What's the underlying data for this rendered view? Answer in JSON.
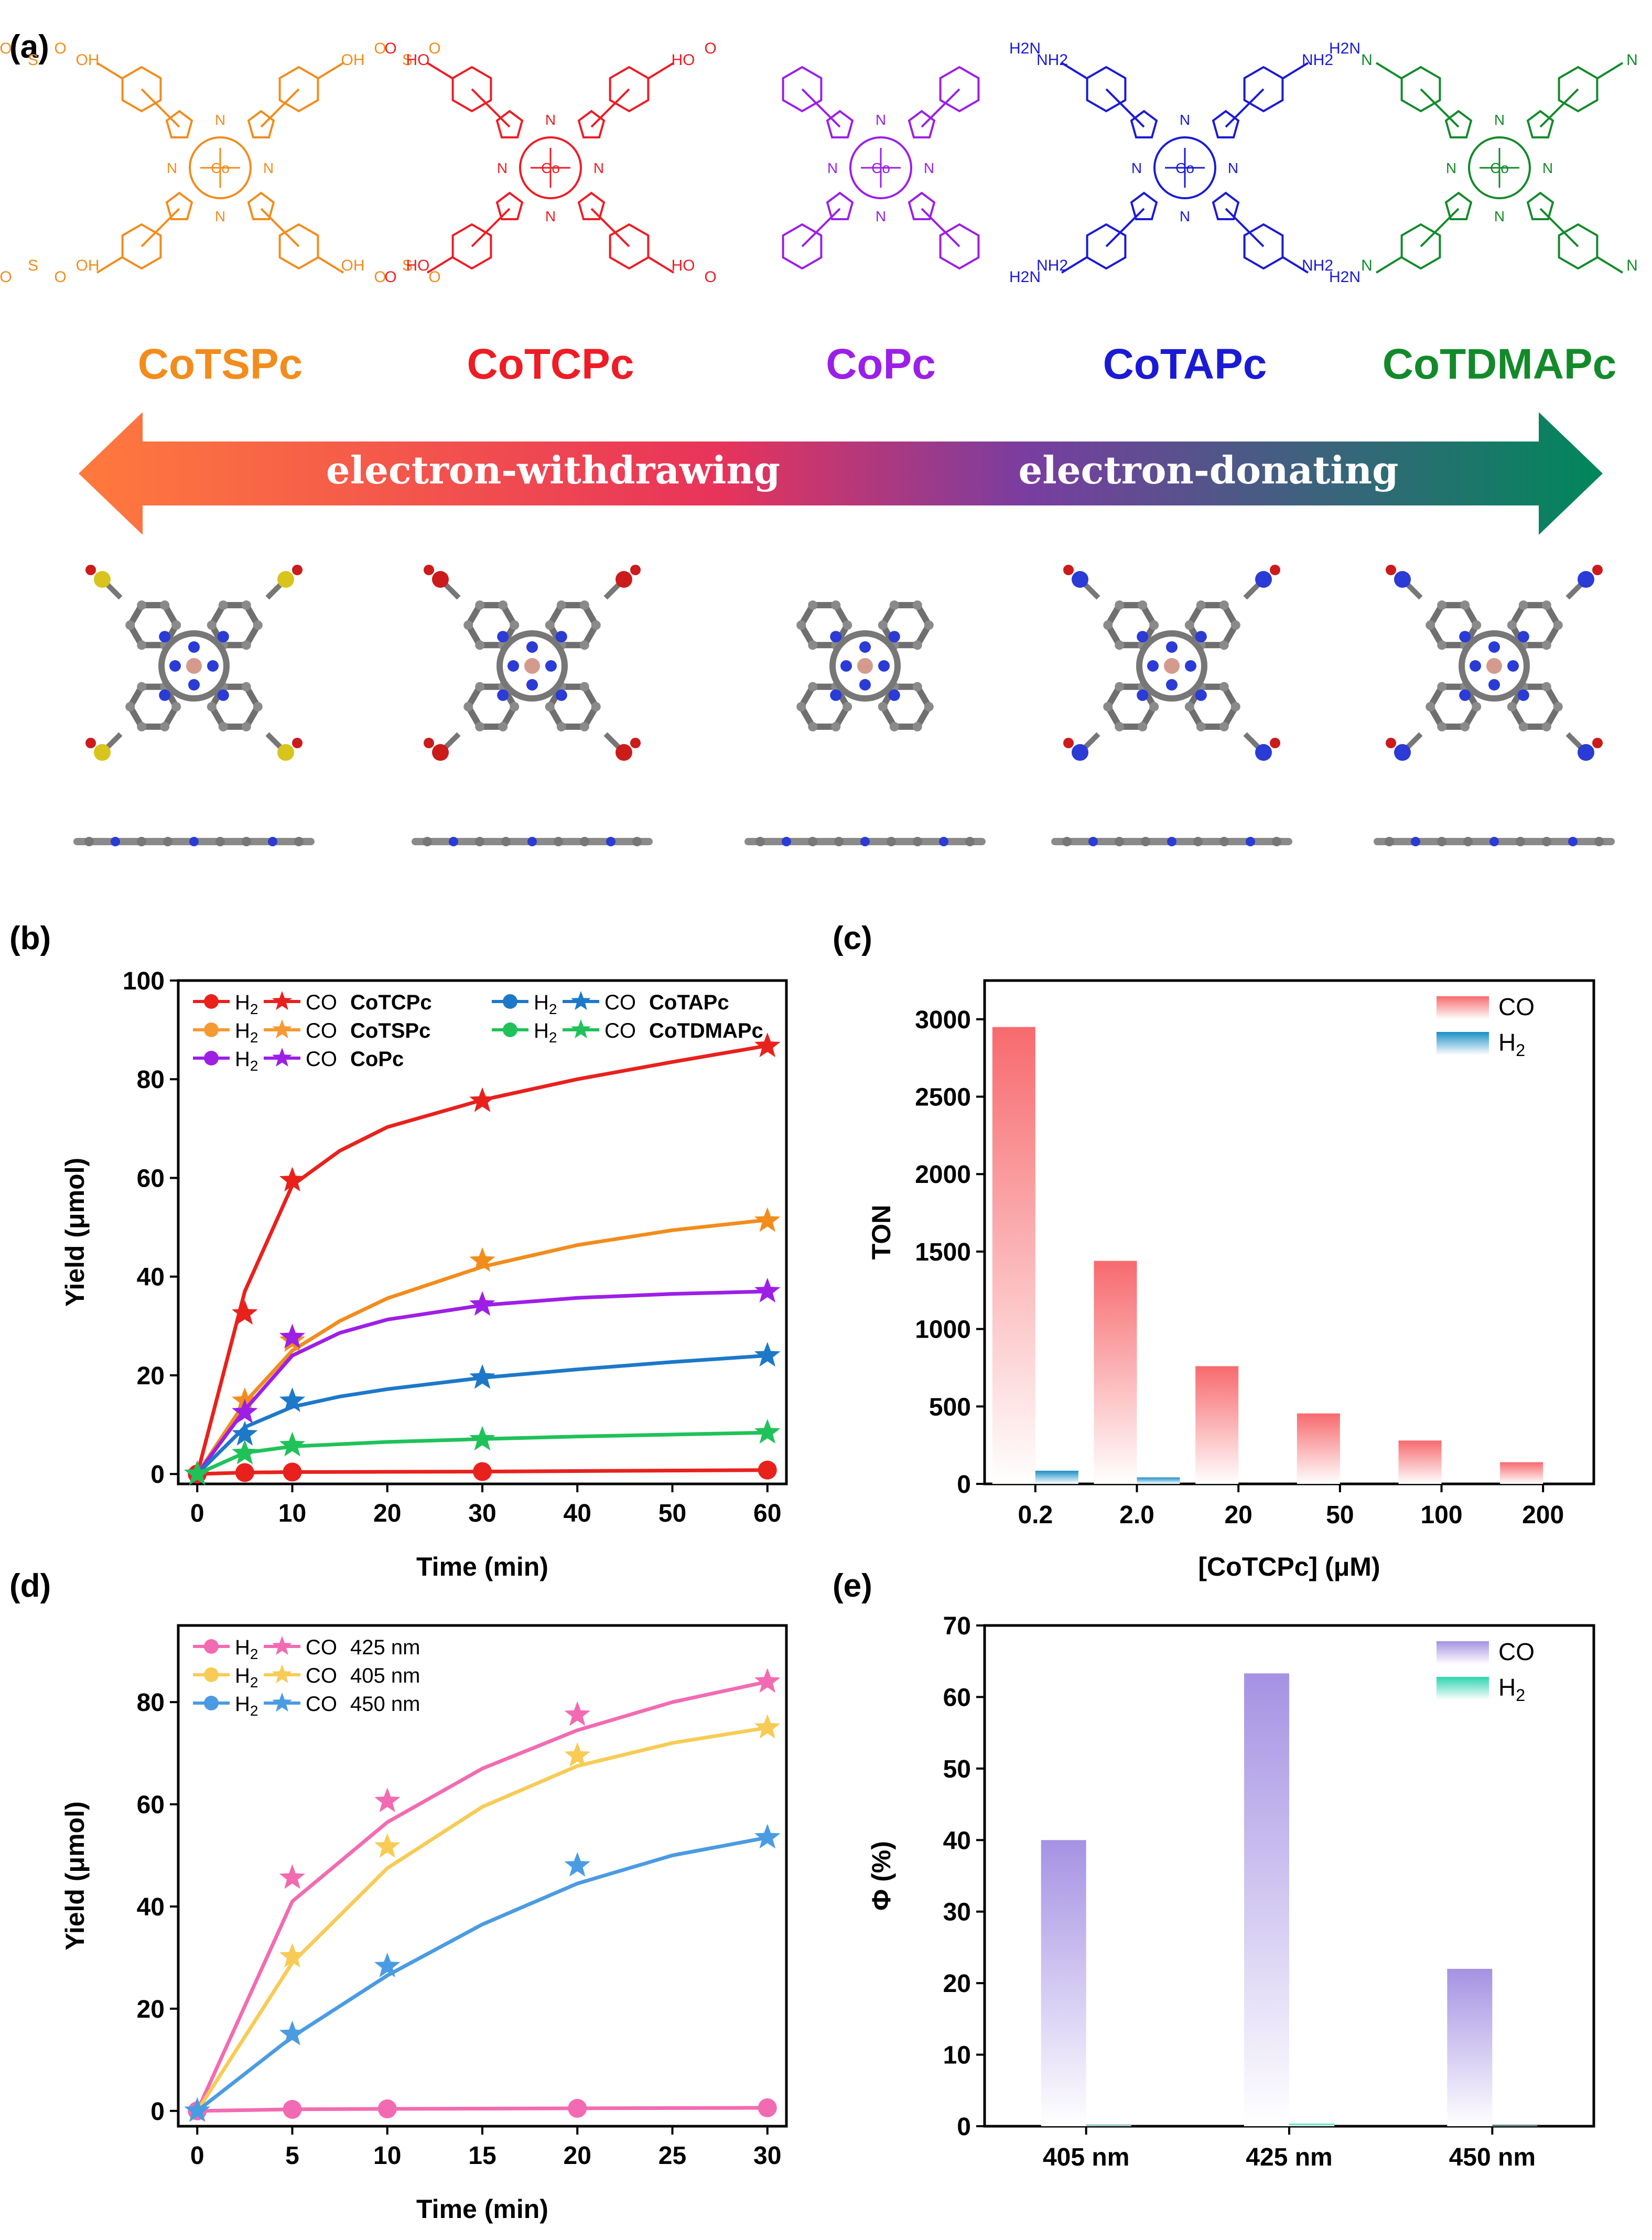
{
  "panel_a": {
    "label": "(a)",
    "molecules": [
      {
        "name": "CoTSPc",
        "color": "#f28c1c",
        "metal": "Co",
        "substituent": "SO3H",
        "labels": [
          "OH",
          "O",
          "S",
          "O"
        ]
      },
      {
        "name": "CoTCPc",
        "color": "#ee1c24",
        "metal": "Co",
        "substituent": "COOH",
        "labels": [
          "HO",
          "O"
        ]
      },
      {
        "name": "CoPc",
        "color": "#9b1fe8",
        "metal": "Co",
        "substituent": "H",
        "labels": []
      },
      {
        "name": "CoTAPc",
        "color": "#1a1ad6",
        "metal": "Co",
        "substituent": "NH2",
        "labels": [
          "NH2",
          "H2N"
        ]
      },
      {
        "name": "CoTDMAPc",
        "color": "#138a2a",
        "metal": "Co",
        "substituent": "NMe2",
        "labels": [
          "N"
        ]
      }
    ],
    "ring_atom": "N",
    "arrow": {
      "left_text": "electron-withdrawing",
      "right_text": "electron-donating",
      "left_color": "#ff7a3d",
      "mid_color": "#e8335a",
      "mid2_color": "#7a3da0",
      "right_color": "#00875a"
    }
  },
  "chart_data": [
    {
      "panel": "(b)",
      "type": "line",
      "xlabel": "Time (min)",
      "ylabel": "Yield (μmol)",
      "xlim": [
        -2,
        62
      ],
      "ylim": [
        -2,
        100
      ],
      "xticks": [
        0,
        10,
        20,
        30,
        40,
        50,
        60
      ],
      "yticks": [
        0,
        20,
        40,
        60,
        80,
        100
      ],
      "x": [
        0,
        5,
        10,
        30,
        60
      ],
      "legend_position": "top-left",
      "legend_rows": [
        {
          "h2": "H2",
          "co": "CO",
          "name": "CoTCPc",
          "color": "#e8211d"
        },
        {
          "h2": "H2",
          "co": "CO",
          "name": "CoTSPc",
          "color": "#f59a32"
        },
        {
          "h2": "H2",
          "co": "CO",
          "name": "CoPc",
          "color": "#9d1fe6"
        },
        {
          "h2": "H2",
          "co": "CO",
          "name": "CoTAPc",
          "color": "#1d78c9"
        },
        {
          "h2": "H2",
          "co": "CO",
          "name": "CoTDMAPc",
          "color": "#1fc259"
        }
      ],
      "series": [
        {
          "name": "CoTCPc",
          "gas": "CO",
          "color": "#e8211d",
          "values": [
            0,
            32.5,
            59.5,
            75.6,
            86.7
          ],
          "fit": [
            [
              0,
              0
            ],
            [
              5,
              37
            ],
            [
              10,
              58.5
            ],
            [
              15,
              65.5
            ],
            [
              20,
              70.3
            ],
            [
              30,
              75.8
            ],
            [
              40,
              80
            ],
            [
              50,
              83.5
            ],
            [
              60,
              86.8
            ]
          ]
        },
        {
          "name": "CoTSPc",
          "gas": "CO",
          "color": "#f28c1c",
          "values": [
            0,
            14.8,
            27,
            43.2,
            51.3
          ],
          "fit": [
            [
              0,
              0
            ],
            [
              5,
              14.5
            ],
            [
              10,
              25
            ],
            [
              15,
              31
            ],
            [
              20,
              35.6
            ],
            [
              30,
              42
            ],
            [
              40,
              46.4
            ],
            [
              50,
              49.4
            ],
            [
              60,
              51.5
            ]
          ]
        },
        {
          "name": "CoPc",
          "gas": "CO",
          "color": "#9d1fe6",
          "values": [
            0,
            12.5,
            27.7,
            34.3,
            37
          ],
          "fit": [
            [
              0,
              0
            ],
            [
              5,
              13
            ],
            [
              10,
              24
            ],
            [
              15,
              28.6
            ],
            [
              20,
              31.3
            ],
            [
              30,
              34.2
            ],
            [
              40,
              35.7
            ],
            [
              50,
              36.5
            ],
            [
              60,
              37
            ]
          ]
        },
        {
          "name": "CoTAPc",
          "gas": "CO",
          "color": "#1d78c9",
          "values": [
            0,
            8,
            14.8,
            19.5,
            24
          ],
          "fit": [
            [
              0,
              0
            ],
            [
              5,
              9.5
            ],
            [
              10,
              13.6
            ],
            [
              15,
              15.7
            ],
            [
              20,
              17.2
            ],
            [
              30,
              19.5
            ],
            [
              40,
              21.2
            ],
            [
              50,
              22.7
            ],
            [
              60,
              24
            ]
          ]
        },
        {
          "name": "CoTDMAPc",
          "gas": "CO",
          "color": "#1fc259",
          "values": [
            0,
            4.2,
            5.8,
            7,
            8.4
          ],
          "fit": [
            [
              0,
              0
            ],
            [
              5,
              4.3
            ],
            [
              10,
              5.6
            ],
            [
              20,
              6.5
            ],
            [
              30,
              7.1
            ],
            [
              40,
              7.6
            ],
            [
              50,
              8
            ],
            [
              60,
              8.4
            ]
          ]
        },
        {
          "name": "CoTCPc",
          "gas": "H2",
          "color": "#e8211d",
          "values": [
            0,
            0.3,
            0.4,
            0.5,
            0.8
          ],
          "fit": [
            [
              0,
              0
            ],
            [
              5,
              0.3
            ],
            [
              10,
              0.4
            ],
            [
              30,
              0.5
            ],
            [
              60,
              0.8
            ]
          ]
        }
      ]
    },
    {
      "panel": "(c)",
      "type": "bar",
      "xlabel": "[CoTCPc] (μM)",
      "ylabel": "TON",
      "ylim": [
        0,
        3250
      ],
      "yticks": [
        0,
        500,
        1000,
        1500,
        2000,
        2500,
        3000
      ],
      "categories": [
        "0.2",
        "2.0",
        "20",
        "50",
        "100",
        "200"
      ],
      "legend_position": "top-right",
      "series": [
        {
          "name": "CO",
          "color": "#f76a6e",
          "values": [
            2950,
            1440,
            760,
            455,
            280,
            140
          ]
        },
        {
          "name": "H2",
          "color": "#1b8fc6",
          "values": [
            85,
            42,
            0,
            0,
            0,
            0
          ]
        }
      ]
    },
    {
      "panel": "(d)",
      "type": "line",
      "xlabel": "Time (min)",
      "ylabel": "Yield (μmol)",
      "xlim": [
        -1,
        31
      ],
      "ylim": [
        -3,
        95
      ],
      "xticks": [
        0,
        5,
        10,
        15,
        20,
        25,
        30
      ],
      "yticks": [
        0,
        20,
        40,
        60,
        80
      ],
      "x": [
        0,
        5,
        10,
        20,
        30
      ],
      "legend_position": "top-left",
      "legend_rows": [
        {
          "h2": "H2",
          "co": "CO",
          "name": "425 nm",
          "color": "#f26bb2"
        },
        {
          "h2": "H2",
          "co": "CO",
          "name": "405 nm",
          "color": "#f7cb55"
        },
        {
          "h2": "H2",
          "co": "CO",
          "name": "450 nm",
          "color": "#4a9be2"
        }
      ],
      "series": [
        {
          "name": "425 nm",
          "gas": "CO",
          "color": "#f26bb2",
          "values": [
            0,
            45.6,
            60.6,
            77.5,
            84
          ],
          "fit": [
            [
              0,
              0
            ],
            [
              5,
              41
            ],
            [
              10,
              56.5
            ],
            [
              15,
              67
            ],
            [
              20,
              74.5
            ],
            [
              25,
              80
            ],
            [
              30,
              84
            ]
          ]
        },
        {
          "name": "405 nm",
          "gas": "CO",
          "color": "#f7cb55",
          "values": [
            0,
            30.2,
            51.7,
            69.5,
            75
          ],
          "fit": [
            [
              0,
              0
            ],
            [
              5,
              29
            ],
            [
              10,
              47.5
            ],
            [
              15,
              59.5
            ],
            [
              20,
              67.5
            ],
            [
              25,
              72
            ],
            [
              30,
              75
            ]
          ]
        },
        {
          "name": "450 nm",
          "gas": "CO",
          "color": "#4a9be2",
          "values": [
            0,
            15,
            28.3,
            48,
            53.5
          ],
          "fit": [
            [
              0,
              0
            ],
            [
              5,
              14.5
            ],
            [
              10,
              26.5
            ],
            [
              15,
              36.5
            ],
            [
              20,
              44.5
            ],
            [
              25,
              50
            ],
            [
              30,
              53.5
            ]
          ]
        },
        {
          "name": "425 nm",
          "gas": "H2",
          "color": "#f26bb2",
          "values": [
            0,
            0.3,
            0.4,
            0.5,
            0.6
          ],
          "fit": [
            [
              0,
              0
            ],
            [
              5,
              0.3
            ],
            [
              10,
              0.4
            ],
            [
              20,
              0.5
            ],
            [
              30,
              0.6
            ]
          ]
        }
      ]
    },
    {
      "panel": "(e)",
      "type": "bar",
      "xlabel": "",
      "ylabel": "Φ (%)",
      "ylim": [
        0,
        70
      ],
      "yticks": [
        0,
        10,
        20,
        30,
        40,
        50,
        60,
        70
      ],
      "categories": [
        "405 nm",
        "425 nm",
        "450 nm"
      ],
      "legend_position": "top-right",
      "series": [
        {
          "name": "CO",
          "color": "#a592e3",
          "values": [
            40,
            63.3,
            22
          ]
        },
        {
          "name": "H2",
          "color": "#2fd4b0",
          "values": [
            0.15,
            0.35,
            0.1
          ]
        }
      ]
    }
  ]
}
